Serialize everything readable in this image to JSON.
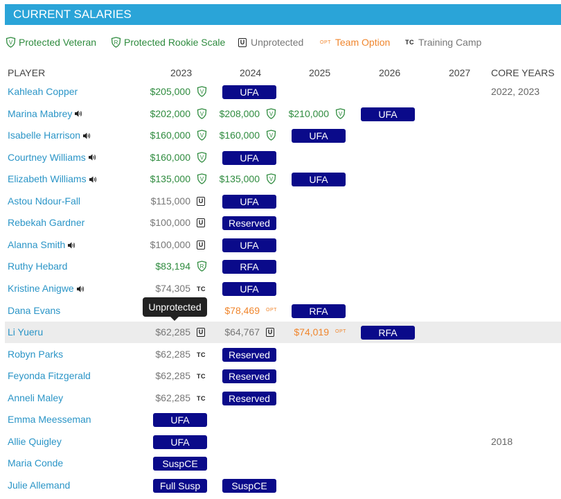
{
  "header": {
    "title": "CURRENT SALARIES"
  },
  "legend": {
    "protected_veteran": "Protected Veteran",
    "protected_rookie": "Protected Rookie Scale",
    "unprotected": "Unprotected",
    "team_option_badge": "OPT",
    "team_option": "Team Option",
    "training_camp_badge": "TC",
    "training_camp": "Training Camp"
  },
  "columns": [
    "PLAYER",
    "2023",
    "2024",
    "2025",
    "2026",
    "2027",
    "CORE YEARS"
  ],
  "badges": {
    "unprotected_letter": "U",
    "tc": "TC",
    "opt": "OPT"
  },
  "tooltip": {
    "text": "Unprotected"
  },
  "colors": {
    "header_bg": "#2aa4d8",
    "pill_bg": "#0a0a8a",
    "protected_green": "#2e8b3e",
    "option_orange": "#f0862d",
    "player_link": "#2b95c7"
  },
  "rows": [
    {
      "name": "Kahleah Copper",
      "audio": false,
      "y2023": {
        "amount": "$205,000",
        "style": "green",
        "icon": "V"
      },
      "y2024": {
        "pill": "UFA"
      },
      "core": "2022, 2023"
    },
    {
      "name": "Marina Mabrey",
      "audio": true,
      "y2023": {
        "amount": "$202,000",
        "style": "green",
        "icon": "V"
      },
      "y2024": {
        "amount": "$208,000",
        "style": "green",
        "icon": "V"
      },
      "y2025": {
        "amount": "$210,000",
        "style": "green",
        "icon": "V"
      },
      "y2026": {
        "pill": "UFA"
      }
    },
    {
      "name": "Isabelle Harrison",
      "audio": true,
      "y2023": {
        "amount": "$160,000",
        "style": "green",
        "icon": "V"
      },
      "y2024": {
        "amount": "$160,000",
        "style": "green",
        "icon": "V"
      },
      "y2025": {
        "pill": "UFA"
      }
    },
    {
      "name": "Courtney Williams",
      "audio": true,
      "y2023": {
        "amount": "$160,000",
        "style": "green",
        "icon": "V"
      },
      "y2024": {
        "pill": "UFA"
      }
    },
    {
      "name": "Elizabeth Williams",
      "audio": true,
      "y2023": {
        "amount": "$135,000",
        "style": "green",
        "icon": "V"
      },
      "y2024": {
        "amount": "$135,000",
        "style": "green",
        "icon": "V"
      },
      "y2025": {
        "pill": "UFA"
      }
    },
    {
      "name": "Astou Ndour-Fall",
      "audio": false,
      "y2023": {
        "amount": "$115,000",
        "style": "gray",
        "icon": "U"
      },
      "y2024": {
        "pill": "UFA"
      }
    },
    {
      "name": "Rebekah Gardner",
      "audio": false,
      "y2023": {
        "amount": "$100,000",
        "style": "gray",
        "icon": "U"
      },
      "y2024": {
        "pill": "Reserved"
      }
    },
    {
      "name": "Alanna Smith",
      "audio": true,
      "y2023": {
        "amount": "$100,000",
        "style": "gray",
        "icon": "U"
      },
      "y2024": {
        "pill": "UFA"
      }
    },
    {
      "name": "Ruthy Hebard",
      "audio": false,
      "y2023": {
        "amount": "$83,194",
        "style": "green",
        "icon": "R"
      },
      "y2024": {
        "pill": "RFA"
      }
    },
    {
      "name": "Kristine Anigwe",
      "audio": true,
      "y2023": {
        "amount": "$74,305",
        "style": "gray",
        "icon": "TC"
      },
      "y2024": {
        "pill": "UFA"
      }
    },
    {
      "name": "Dana Evans",
      "audio": false,
      "y2024": {
        "amount": "$78,469",
        "style": "orange",
        "icon": "OPT"
      },
      "y2025": {
        "pill": "RFA"
      }
    },
    {
      "name": "Li Yueru",
      "audio": false,
      "highlighted": true,
      "y2023": {
        "amount": "$62,285",
        "style": "gray",
        "icon": "U"
      },
      "y2024": {
        "amount": "$64,767",
        "style": "gray",
        "icon": "U"
      },
      "y2025": {
        "amount": "$74,019",
        "style": "orange",
        "icon": "OPT"
      },
      "y2026": {
        "pill": "RFA"
      }
    },
    {
      "name": "Robyn Parks",
      "audio": false,
      "y2023": {
        "amount": "$62,285",
        "style": "gray",
        "icon": "TC"
      },
      "y2024": {
        "pill": "Reserved"
      }
    },
    {
      "name": "Feyonda Fitzgerald",
      "audio": false,
      "y2023": {
        "amount": "$62,285",
        "style": "gray",
        "icon": "TC"
      },
      "y2024": {
        "pill": "Reserved"
      }
    },
    {
      "name": "Anneli Maley",
      "audio": false,
      "y2023": {
        "amount": "$62,285",
        "style": "gray",
        "icon": "TC"
      },
      "y2024": {
        "pill": "Reserved"
      }
    },
    {
      "name": "Emma Meesseman",
      "audio": false,
      "y2023": {
        "pill": "UFA"
      }
    },
    {
      "name": "Allie Quigley",
      "audio": false,
      "y2023": {
        "pill": "UFA"
      },
      "core": "2018"
    },
    {
      "name": "Maria Conde",
      "audio": false,
      "y2023": {
        "pill": "SuspCE"
      }
    },
    {
      "name": "Julie Allemand",
      "audio": false,
      "y2023": {
        "pill": "Full Susp"
      },
      "y2024": {
        "pill": "SuspCE"
      }
    }
  ]
}
